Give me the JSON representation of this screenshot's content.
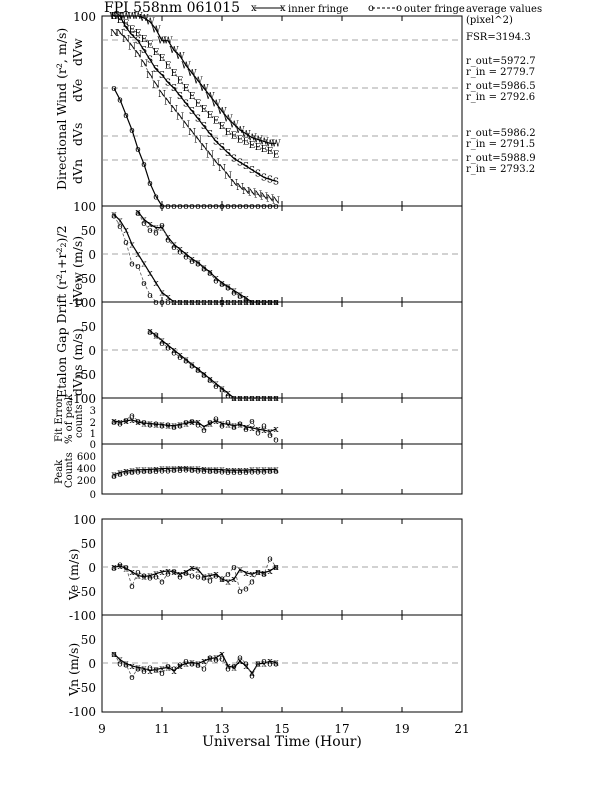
{
  "header": {
    "title": "FPI 558nm 061015",
    "legend_inner": "inner fringe",
    "legend_outer": "outer fringe",
    "legend_avg_line1": "average values",
    "legend_avg_line2": "(pixel^2)"
  },
  "annotations": {
    "fsr": "FSR=3194.3",
    "w_out": "r_out=5972.7",
    "w_in": "r_in = 2779.7",
    "e_out": "r_out=5986.5",
    "e_in": "r_in = 2792.6",
    "s_out": "r_out=5986.2",
    "s_in": "r_in = 2791.5",
    "n_out": "r_out=5988.9",
    "n_in": "r_in = 2793.2"
  },
  "xaxis": {
    "label": "Universal Time (Hour)",
    "ticks": [
      "9",
      "11",
      "13",
      "15",
      "17",
      "19",
      "21"
    ]
  },
  "panels": {
    "wind": {
      "ylabel_main": "Directional Wind (r², m/s)",
      "ylabels": [
        "dVw",
        "dVe",
        "dVs",
        "dVn"
      ],
      "ticks": [
        "100",
        "100"
      ]
    },
    "drift": {
      "ylabel_main": "Etalon Gap Drift (r²₁+r²₂)/2",
      "ylabel_ew": "dVew (m/s)",
      "ylabel_ns": "dVns (m/s)",
      "ticks_ew": [
        "100",
        "50",
        "0",
        "-50",
        "-100"
      ],
      "ticks_ns": [
        "50",
        "0",
        "-50",
        "-100"
      ]
    },
    "fit": {
      "ylabel1": "Fit Error",
      "ylabel2": "% of peak",
      "ylabel3": "counts",
      "ticks": [
        "4",
        "3",
        "2",
        "1",
        "0"
      ]
    },
    "peak": {
      "ylabel1": "Peak",
      "ylabel2": "Counts",
      "ticks": [
        "600",
        "400",
        "200",
        "0"
      ]
    },
    "ve": {
      "ylabel": "Ve (m/s)",
      "ticks": [
        "100",
        "50",
        "0",
        "-50",
        "-100"
      ]
    },
    "vn": {
      "ylabel": "Vn (m/s)",
      "ticks": [
        "100",
        "50",
        "0",
        "-50",
        "-100"
      ]
    }
  },
  "chart_data": {
    "type": "line",
    "x_range": [
      9,
      21
    ],
    "x_ticks": [
      9,
      11,
      13,
      15,
      17,
      19,
      21
    ],
    "grid": "dashed horizontal reference lines",
    "x": [
      9.4,
      9.6,
      9.8,
      10.0,
      10.2,
      10.4,
      10.6,
      10.8,
      11.0,
      11.2,
      11.4,
      11.6,
      11.8,
      12.0,
      12.2,
      12.4,
      12.6,
      12.8,
      13.0,
      13.2,
      13.4,
      13.6,
      13.8,
      14.0,
      14.2,
      14.4,
      14.6,
      14.8
    ],
    "wind": {
      "ylim": [
        0,
        100
      ],
      "traces": [
        {
          "name": "W",
          "marker": "W",
          "values": [
            100,
            100,
            100,
            100,
            100,
            99,
            97,
            93,
            87,
            87,
            82,
            79,
            74,
            70,
            66,
            62,
            58,
            54,
            50,
            46,
            43,
            40,
            38,
            36,
            35,
            34,
            33,
            33
          ]
        },
        {
          "name": "E",
          "marker": "E",
          "values": [
            100,
            98,
            96,
            93,
            91,
            88,
            85,
            81,
            78,
            74,
            70,
            66,
            62,
            58,
            54,
            51,
            48,
            45,
            42,
            39,
            37,
            35,
            34,
            32,
            31,
            30,
            29,
            27
          ]
        },
        {
          "name": "S",
          "marker": "S",
          "values": [
            100,
            100,
            94,
            90,
            87,
            82,
            77,
            72,
            69,
            65,
            62,
            58,
            54,
            50,
            46,
            42,
            38,
            34,
            31,
            28,
            25,
            23,
            21,
            19,
            17,
            15,
            14,
            13
          ]
        },
        {
          "name": "N",
          "marker": "N",
          "values": [
            91,
            91,
            88,
            84,
            80,
            75,
            69,
            64,
            59,
            55,
            51,
            47,
            43,
            39,
            35,
            31,
            27,
            23,
            20,
            16,
            12,
            10,
            8,
            7,
            6,
            5,
            4,
            3
          ]
        },
        {
          "name": "O",
          "marker": "o",
          "values": [
            62,
            56,
            48,
            40,
            30,
            22,
            12,
            5,
            0,
            0,
            0,
            0,
            0,
            0,
            0,
            0,
            0,
            0,
            0,
            0,
            0,
            0,
            0,
            0,
            0,
            0,
            0,
            0
          ]
        }
      ]
    },
    "drift_ew": {
      "ylim": [
        -100,
        100
      ],
      "inner": [
        82,
        70,
        50,
        20,
        0,
        -20,
        -40,
        -60,
        -80,
        -90,
        -100,
        -100,
        -100,
        -100,
        -100,
        -100,
        -100,
        -100,
        -100,
        -100,
        -100,
        -100,
        -100,
        -100,
        -100,
        -100,
        -100,
        -100
      ],
      "outer": [
        80,
        58,
        25,
        -20,
        -25,
        -60,
        -85,
        -100,
        -100,
        -100,
        -100,
        -100,
        -100,
        -100,
        -100,
        -100,
        -100,
        -100,
        -100,
        -100,
        -100,
        -100,
        -100,
        -100,
        -100,
        -100,
        -100,
        -100
      ]
    },
    "drift_ew_upper": {
      "inner": [
        null,
        null,
        null,
        null,
        88,
        72,
        62,
        55,
        55,
        35,
        20,
        10,
        0,
        -10,
        -18,
        -28,
        -38,
        -50,
        -60,
        -68,
        -76,
        -84,
        -92,
        -100,
        -100,
        -100,
        -100,
        -100
      ],
      "outer": [
        null,
        null,
        null,
        null,
        85,
        65,
        50,
        45,
        60,
        30,
        15,
        5,
        -5,
        -15,
        -20,
        -30,
        -40,
        -55,
        -62,
        -70,
        -80,
        -88,
        -95,
        -100,
        -100,
        -100,
        -100,
        -100
      ]
    },
    "drift_ns": {
      "ylim": [
        -100,
        100
      ],
      "inner": [
        null,
        null,
        null,
        null,
        null,
        null,
        40,
        30,
        20,
        10,
        0,
        -10,
        -20,
        -30,
        -40,
        -50,
        -60,
        -70,
        -80,
        -90,
        -100,
        -100,
        -100,
        -100,
        -100,
        -100,
        -100,
        -100
      ],
      "outer": [
        null,
        null,
        null,
        null,
        null,
        null,
        38,
        32,
        15,
        5,
        -5,
        -15,
        -22,
        -32,
        -42,
        -52,
        -62,
        -75,
        -82,
        -95,
        -100,
        -100,
        -100,
        -100,
        -100,
        -100,
        -100,
        -100
      ]
    },
    "fit_error": {
      "ylim": [
        0,
        4
      ],
      "inner": [
        2.0,
        1.9,
        2.0,
        2.1,
        1.9,
        1.8,
        1.8,
        1.7,
        1.7,
        1.6,
        1.6,
        1.7,
        1.8,
        1.9,
        1.9,
        1.5,
        1.8,
        2.0,
        1.8,
        1.7,
        1.6,
        1.7,
        1.5,
        1.4,
        1.3,
        1.2,
        1.1,
        1.3
      ],
      "outer": [
        1.9,
        1.8,
        2.1,
        2.5,
        2.0,
        1.9,
        1.7,
        1.8,
        1.6,
        1.7,
        1.5,
        1.6,
        1.9,
        2.0,
        1.7,
        1.2,
        1.9,
        2.2,
        1.6,
        1.9,
        1.5,
        1.8,
        1.3,
        2.0,
        1.0,
        1.6,
        0.8,
        0.4
      ]
    },
    "peak_counts": {
      "ylim": [
        0,
        600
      ],
      "inner": [
        270,
        300,
        320,
        330,
        340,
        340,
        345,
        350,
        355,
        360,
        360,
        365,
        365,
        360,
        355,
        350,
        345,
        345,
        340,
        335,
        335,
        335,
        335,
        340,
        340,
        340,
        345,
        345
      ],
      "outer": [
        250,
        280,
        300,
        310,
        315,
        320,
        320,
        325,
        330,
        330,
        335,
        335,
        340,
        335,
        330,
        325,
        320,
        320,
        315,
        310,
        310,
        310,
        310,
        315,
        315,
        315,
        320,
        320
      ]
    },
    "ve": {
      "ylim": [
        -100,
        100
      ],
      "inner": [
        0,
        2,
        -3,
        -10,
        -18,
        -20,
        -18,
        -14,
        -10,
        -8,
        -10,
        -15,
        -10,
        -2,
        -5,
        -20,
        -18,
        -15,
        -25,
        -30,
        -25,
        -5,
        -12,
        -15,
        -10,
        -12,
        -8,
        0
      ],
      "outer": [
        -2,
        5,
        0,
        -40,
        -10,
        -18,
        -22,
        -20,
        -30,
        -14,
        -8,
        -20,
        -12,
        -18,
        -20,
        -22,
        -28,
        -18,
        -24,
        -15,
        0,
        -50,
        -45,
        -30,
        -10,
        -15,
        18,
        0
      ]
    },
    "vn": {
      "ylim": [
        -100,
        100
      ],
      "inner": [
        20,
        8,
        0,
        -5,
        -8,
        -10,
        -15,
        -12,
        -10,
        -8,
        -15,
        -5,
        0,
        2,
        0,
        5,
        10,
        12,
        20,
        -5,
        -8,
        5,
        -5,
        -20,
        0,
        0,
        5,
        2
      ],
      "outer": [
        20,
        0,
        -2,
        -28,
        -10,
        -15,
        -8,
        -12,
        -20,
        -5,
        -10,
        -2,
        5,
        0,
        -3,
        -10,
        12,
        8,
        10,
        -10,
        -5,
        12,
        0,
        -25,
        0,
        5,
        0,
        0
      ]
    }
  }
}
